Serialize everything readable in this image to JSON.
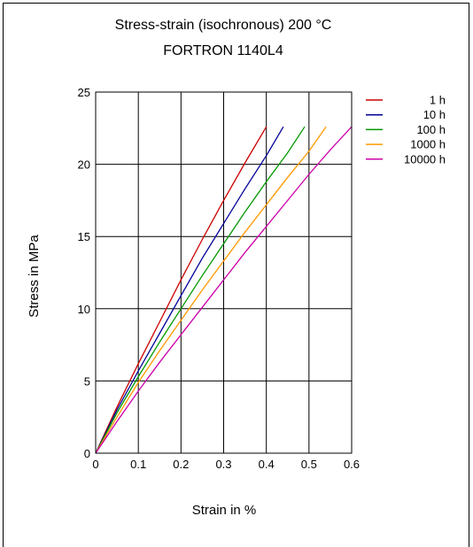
{
  "chart_data": {
    "type": "line",
    "title": "Stress-strain (isochronous) 200 °C",
    "subtitle": "FORTRON 1140L4",
    "xlabel": "Strain in %",
    "ylabel": "Stress in MPa",
    "xlim": [
      0,
      0.6
    ],
    "ylim": [
      0,
      25
    ],
    "xticks": [
      "0",
      "0.1",
      "0.2",
      "0.3",
      "0.4",
      "0.5",
      "0.6"
    ],
    "yticks": [
      "0",
      "5",
      "10",
      "15",
      "20",
      "25"
    ],
    "grid": true,
    "legend_position": "right",
    "series": [
      {
        "name": "1 h",
        "color": "#cc0000",
        "points": [
          [
            0,
            0
          ],
          [
            0.05,
            3.2
          ],
          [
            0.1,
            6.2
          ],
          [
            0.15,
            9.1
          ],
          [
            0.2,
            12.0
          ],
          [
            0.25,
            14.8
          ],
          [
            0.3,
            17.5
          ],
          [
            0.35,
            20.1
          ],
          [
            0.4,
            22.6
          ]
        ]
      },
      {
        "name": "10 h",
        "color": "#000099",
        "points": [
          [
            0,
            0
          ],
          [
            0.05,
            3.0
          ],
          [
            0.1,
            5.7
          ],
          [
            0.15,
            8.3
          ],
          [
            0.2,
            10.9
          ],
          [
            0.25,
            13.5
          ],
          [
            0.3,
            15.9
          ],
          [
            0.35,
            18.3
          ],
          [
            0.4,
            20.6
          ],
          [
            0.44,
            22.6
          ]
        ]
      },
      {
        "name": "100 h",
        "color": "#009900",
        "points": [
          [
            0,
            0
          ],
          [
            0.05,
            2.8
          ],
          [
            0.1,
            5.3
          ],
          [
            0.15,
            7.7
          ],
          [
            0.2,
            10.0
          ],
          [
            0.25,
            12.3
          ],
          [
            0.3,
            14.5
          ],
          [
            0.35,
            16.7
          ],
          [
            0.4,
            18.8
          ],
          [
            0.45,
            20.8
          ],
          [
            0.49,
            22.6
          ]
        ]
      },
      {
        "name": "1000 h",
        "color": "#ff9900",
        "points": [
          [
            0,
            0
          ],
          [
            0.05,
            2.5
          ],
          [
            0.1,
            4.9
          ],
          [
            0.15,
            7.1
          ],
          [
            0.2,
            9.2
          ],
          [
            0.25,
            11.3
          ],
          [
            0.3,
            13.3
          ],
          [
            0.35,
            15.3
          ],
          [
            0.4,
            17.2
          ],
          [
            0.45,
            19.1
          ],
          [
            0.5,
            20.9
          ],
          [
            0.54,
            22.6
          ]
        ]
      },
      {
        "name": "10000 h",
        "color": "#cc00aa",
        "points": [
          [
            0,
            0
          ],
          [
            0.05,
            2.2
          ],
          [
            0.1,
            4.3
          ],
          [
            0.15,
            6.3
          ],
          [
            0.2,
            8.2
          ],
          [
            0.25,
            10.1
          ],
          [
            0.3,
            12.0
          ],
          [
            0.35,
            13.9
          ],
          [
            0.4,
            15.7
          ],
          [
            0.45,
            17.5
          ],
          [
            0.5,
            19.3
          ],
          [
            0.55,
            21.0
          ],
          [
            0.6,
            22.6
          ]
        ]
      }
    ]
  }
}
